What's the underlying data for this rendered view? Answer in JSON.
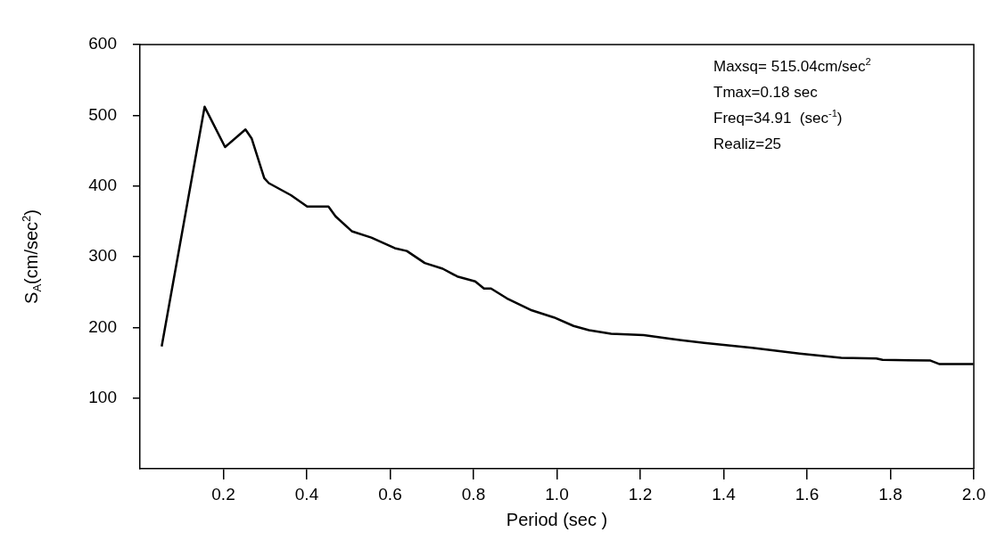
{
  "chart_data": {
    "type": "line",
    "xlabel": "Period (sec )",
    "ylabel": "S$_{A}$(cm/sec$^{2}$)",
    "x": [
      0.052,
      0.155,
      0.204,
      0.253,
      0.268,
      0.298,
      0.309,
      0.362,
      0.401,
      0.452,
      0.469,
      0.508,
      0.555,
      0.611,
      0.64,
      0.683,
      0.726,
      0.761,
      0.804,
      0.825,
      0.842,
      0.88,
      0.94,
      0.993,
      1.04,
      1.077,
      1.13,
      1.208,
      1.27,
      1.353,
      1.468,
      1.582,
      1.682,
      1.766,
      1.781,
      1.896,
      1.918,
      1.999
    ],
    "series": [
      {
        "color": "#000000",
        "values": [
          173,
          512,
          455,
          480,
          467,
          411,
          404,
          387,
          371,
          371,
          357,
          336,
          327,
          312,
          308,
          291,
          283,
          272,
          265,
          255,
          255,
          241,
          224,
          214,
          202,
          196,
          191,
          189,
          184,
          178,
          171,
          163,
          157,
          156,
          154,
          153,
          148,
          148
        ]
      }
    ],
    "xlim": [
      0,
      2.0
    ],
    "xticks": [
      0.2,
      0.4,
      0.6,
      0.8,
      {
        "value": 1,
        "label": "1.0"
      },
      1.2,
      1.4,
      1.6,
      1.8,
      {
        "value": 2,
        "label": "2.0"
      }
    ],
    "ylim": [
      0,
      600
    ],
    "yticks": [
      100,
      200,
      300,
      400,
      500,
      600
    ],
    "grid": false,
    "legend": false,
    "marker": "none",
    "line_style": "solid",
    "annotations": [
      "Maxsq= 515.04cm/sec$^{2}$",
      "Tmax=0.18 sec",
      "Freq=34.91  (sec$^{-1}$)",
      "Realiz=25"
    ]
  }
}
